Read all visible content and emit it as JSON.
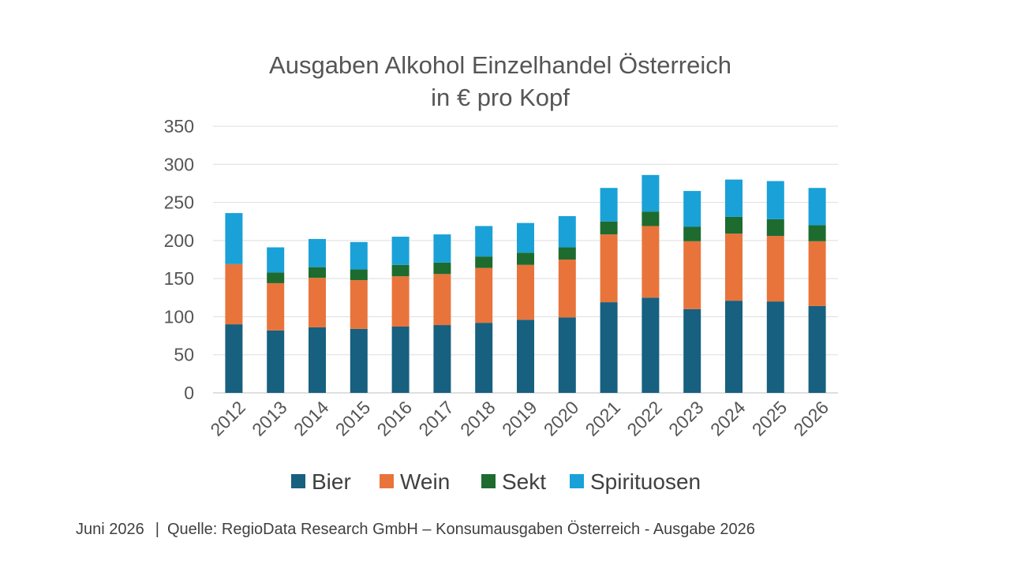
{
  "chart_data": {
    "type": "bar",
    "stacked": true,
    "title": [
      "Ausgaben Alkohol Einzelhandel Österreich",
      "in € pro Kopf"
    ],
    "categories": [
      "2012",
      "2013",
      "2014",
      "2015",
      "2016",
      "2017",
      "2018",
      "2019",
      "2020",
      "2021",
      "2022",
      "2023",
      "2024",
      "2025",
      "2026"
    ],
    "series": [
      {
        "name": "Bier",
        "color": "#17607f",
        "values": [
          90,
          82,
          86,
          84,
          87,
          89,
          92,
          96,
          99,
          119,
          125,
          110,
          121,
          120,
          114
        ]
      },
      {
        "name": "Wein",
        "color": "#e8743b",
        "values": [
          79,
          62,
          65,
          64,
          66,
          67,
          72,
          72,
          76,
          89,
          94,
          89,
          88,
          86,
          85
        ]
      },
      {
        "name": "Sekt",
        "color": "#1e6b2f",
        "values": [
          0,
          14,
          14,
          14,
          15,
          15,
          15,
          16,
          16,
          17,
          19,
          19,
          22,
          22,
          21
        ]
      },
      {
        "name": "Spirituosen",
        "color": "#1aa1d7",
        "values": [
          67,
          33,
          37,
          36,
          37,
          37,
          40,
          39,
          41,
          44,
          48,
          47,
          49,
          50,
          49
        ]
      }
    ],
    "ylim": [
      0,
      350
    ],
    "yticks": [
      0,
      50,
      100,
      150,
      200,
      250,
      300,
      350
    ],
    "grid": true,
    "legend": "bottom"
  },
  "footer": {
    "date": "Juni 2026",
    "separator": "|",
    "source": "Quelle: RegioData Research GmbH – Konsumausgaben Österreich - Ausgabe 2026"
  }
}
